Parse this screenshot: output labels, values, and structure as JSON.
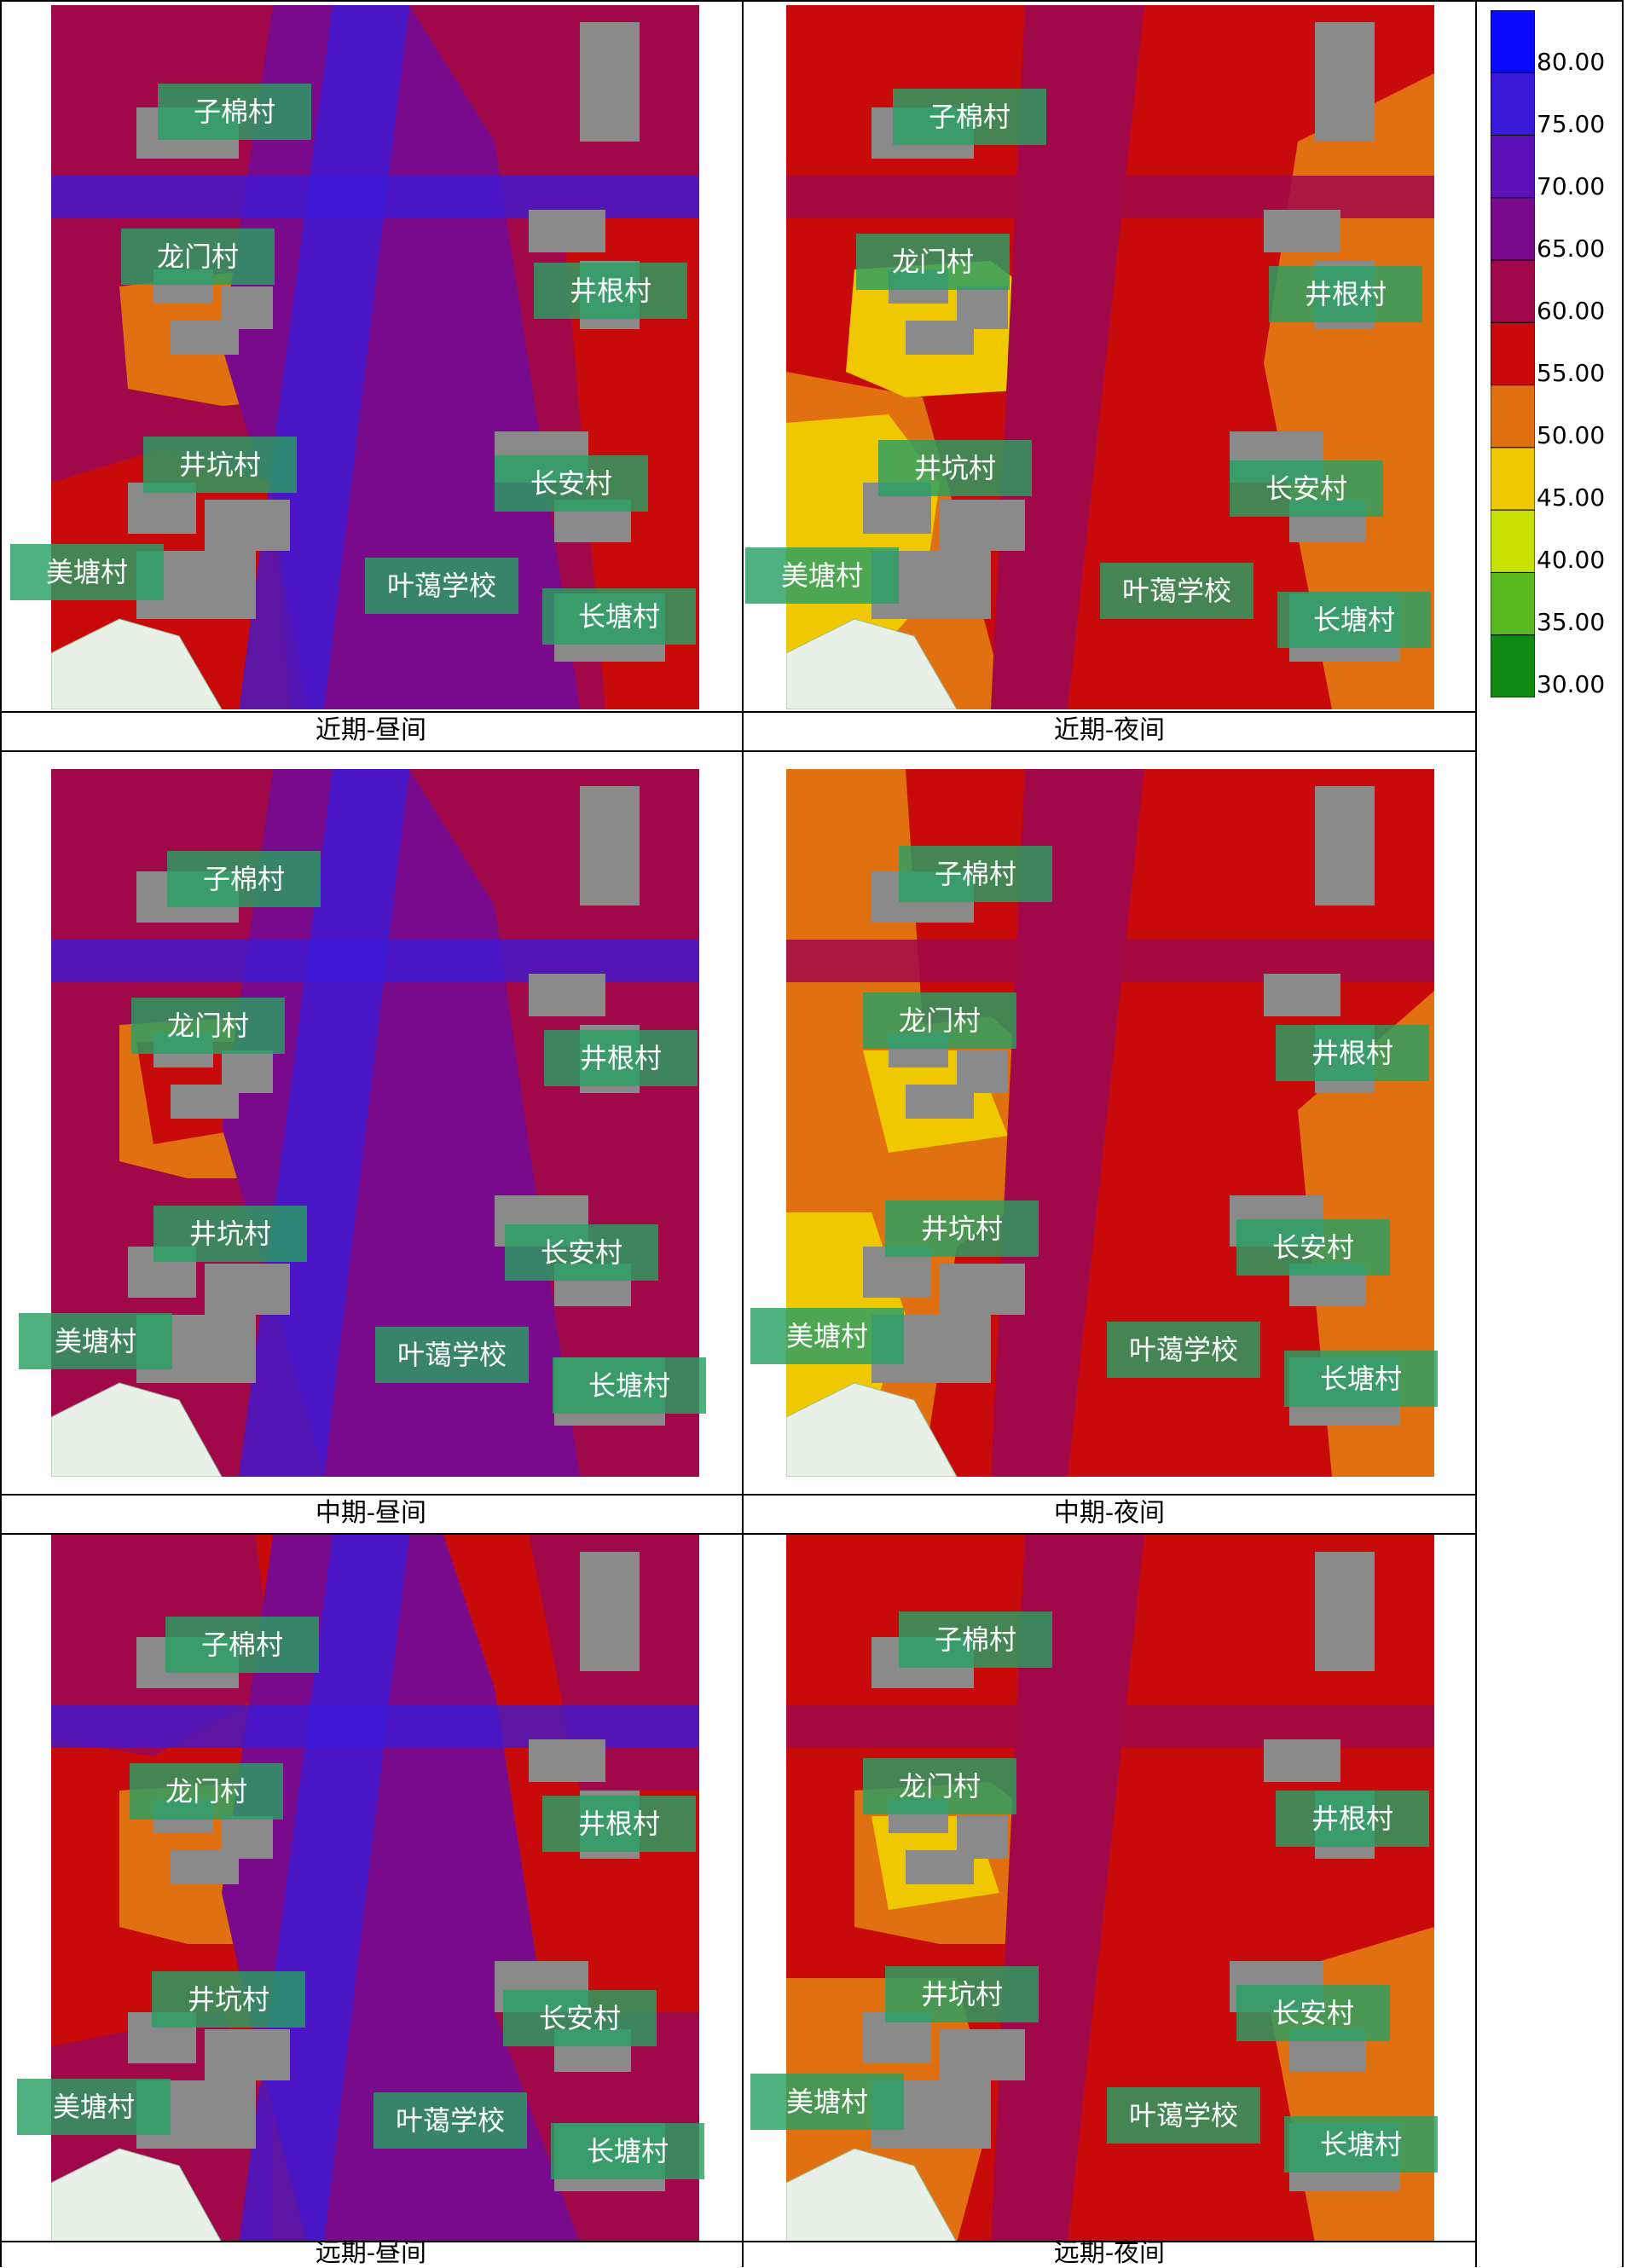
{
  "legend": {
    "ticks": [
      "80.00",
      "75.00",
      "70.00",
      "65.00",
      "60.00",
      "55.00",
      "50.00",
      "45.00",
      "40.00",
      "35.00",
      "30.00"
    ],
    "colors": [
      "#0a0aff",
      "#3a1ad8",
      "#5b10b8",
      "#7a0a8c",
      "#a0084a",
      "#c80a0a",
      "#e07010",
      "#f0c800",
      "#c8e000",
      "#5ab820",
      "#108a10"
    ]
  },
  "labels": [
    "子棉村",
    "龙门村",
    "井根村",
    "井坑村",
    "长安村",
    "美塘村",
    "叶蔼学校",
    "长塘村"
  ],
  "panels": [
    {
      "caption": "近期-昼间",
      "bg": "#a0084a",
      "road": "#7a0a8c",
      "low": "#e07010",
      "low2": "#c80a0a"
    },
    {
      "caption": "近期-夜间",
      "bg": "#e07010",
      "road": "#a0084a",
      "low": "#f0c800",
      "low2": "#c80a0a"
    },
    {
      "caption": "中期-昼间",
      "bg": "#a0084a",
      "road": "#7a0a8c",
      "low": "#e07010",
      "low2": "#c80a0a"
    },
    {
      "caption": "中期-夜间",
      "bg": "#c80a0a",
      "road": "#a0084a",
      "low": "#e07010",
      "low2": "#f0c800"
    },
    {
      "caption": "远期-昼间",
      "bg": "#c80a0a",
      "road": "#7a0a8c",
      "low": "#e07010",
      "low2": "#a0084a"
    },
    {
      "caption": "远期-夜间",
      "bg": "#c80a0a",
      "road": "#a0084a",
      "low": "#e07010",
      "low2": "#f0c800"
    }
  ]
}
